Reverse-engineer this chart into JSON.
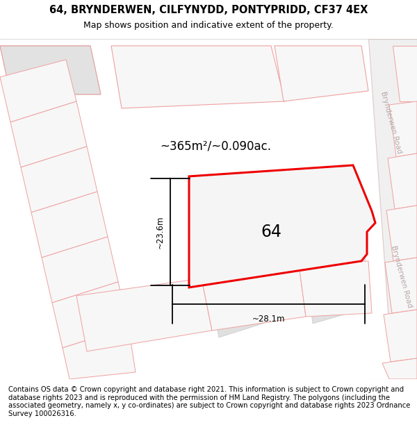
{
  "title_line1": "64, BRYNDERWEN, CILFYNYDD, PONTYPRIDD, CF37 4EX",
  "title_line2": "Map shows position and indicative extent of the property.",
  "footer_text": "Contains OS data © Crown copyright and database right 2021. This information is subject to Crown copyright and database rights 2023 and is reproduced with the permission of HM Land Registry. The polygons (including the associated geometry, namely x, y co-ordinates) are subject to Crown copyright and database rights 2023 Ordnance Survey 100026316.",
  "area_label": "~365m²/~0.090ac.",
  "width_label": "~28.1m",
  "height_label": "~23.6m",
  "plot_number": "64",
  "map_bg": "#f7f7f7",
  "plot_fill": "#f7f7f7",
  "plot_edge": "#ee0000",
  "road_fill": "#ffffff",
  "road_edge": "#e0c8c8",
  "building_fill": "#e0e0e0",
  "building_edge": "#c8c8c8",
  "plot_outline_color": "#f0a0a0",
  "road_label_color": "#c0b0b0",
  "dim_line_color": "#111111",
  "title_fontsize": 10.5,
  "subtitle_fontsize": 9,
  "footer_fontsize": 7.2,
  "label_fontsize": 12,
  "number_fontsize": 17
}
